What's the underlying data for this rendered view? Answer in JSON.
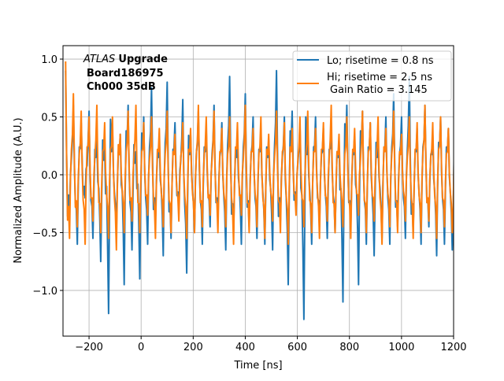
{
  "chart_data": {
    "type": "line",
    "title": "",
    "xlabel": "Time [ns]",
    "ylabel": "Normalized Amplitude (A.U.)",
    "xlim": [
      -300,
      1200
    ],
    "ylim": [
      -1.395,
      1.116
    ],
    "xticks": [
      -200,
      0,
      200,
      400,
      600,
      800,
      1000,
      1200
    ],
    "xtick_labels": [
      "−200",
      "0",
      "200",
      "400",
      "600",
      "800",
      "1000",
      "1200"
    ],
    "yticks": [
      -1.0,
      -0.5,
      0.0,
      0.5,
      1.0
    ],
    "ytick_labels": [
      "−1.0",
      "−0.5",
      "0.0",
      "0.5",
      "1.0"
    ],
    "grid": true,
    "legend_position": "top-right",
    "x_start": -290,
    "x_step": 15,
    "series": [
      {
        "name": "Lo; risetime = 0.8 ns",
        "color": "#1f77b4",
        "values": [
          0.9,
          -0.35,
          0.6,
          -0.6,
          0.45,
          -0.2,
          0.55,
          -0.55,
          0.3,
          -0.75,
          0.25,
          -1.2,
          0.4,
          -0.5,
          0.35,
          -0.95,
          0.6,
          -0.65,
          0.2,
          -0.9,
          0.5,
          -0.6,
          0.75,
          -0.4,
          0.3,
          -0.7,
          0.8,
          -0.55,
          0.45,
          -0.3,
          0.65,
          -0.85,
          0.35,
          -0.5,
          0.55,
          -0.6,
          0.4,
          -0.45,
          0.6,
          -0.4,
          0.45,
          -0.65,
          0.85,
          -0.5,
          0.3,
          -0.6,
          0.7,
          -0.45,
          0.5,
          -0.55,
          0.4,
          -0.6,
          0.3,
          -0.65,
          0.9,
          -0.4,
          0.5,
          -0.95,
          0.55,
          -0.3,
          0.45,
          -1.25,
          0.35,
          -0.6,
          0.5,
          -0.45,
          0.4,
          -0.55,
          0.45,
          -0.5,
          0.3,
          -1.1,
          0.6,
          -0.45,
          0.35,
          -0.95,
          0.55,
          -0.6,
          0.45,
          -0.7,
          0.3,
          -0.55,
          0.5,
          -0.6,
          0.7,
          -0.45,
          0.5,
          -0.55,
          0.85,
          -0.5,
          0.4,
          -0.6,
          0.6,
          -0.45,
          0.35,
          -0.7,
          0.5,
          -0.6,
          0.4,
          -0.65
        ]
      },
      {
        "name": "Hi; risetime = 2.5 ns",
        "name2": "Gain Ratio = 3.145",
        "color": "#ff7f0e",
        "values": [
          0.98,
          -0.55,
          0.7,
          -0.45,
          0.55,
          -0.6,
          0.5,
          -0.4,
          0.6,
          -0.5,
          0.45,
          -0.55,
          0.5,
          -0.65,
          0.35,
          -0.5,
          0.55,
          -0.4,
          0.6,
          -0.5,
          0.45,
          -0.35,
          0.5,
          -0.55,
          0.4,
          -0.45,
          0.55,
          -0.5,
          0.35,
          -0.4,
          0.45,
          -0.55,
          0.4,
          -0.5,
          0.6,
          -0.45,
          0.5,
          -0.35,
          0.55,
          -0.5,
          0.4,
          -0.45,
          0.5,
          -0.6,
          0.45,
          -0.35,
          0.6,
          -0.5,
          0.4,
          -0.45,
          0.5,
          -0.55,
          0.35,
          -0.4,
          0.55,
          -0.5,
          0.45,
          -0.6,
          0.4,
          -0.35,
          0.5,
          -0.45,
          0.55,
          -0.5,
          0.4,
          -0.55,
          0.45,
          -0.4,
          0.6,
          -0.5,
          0.35,
          -0.45,
          0.5,
          -0.55,
          0.4,
          -0.35,
          0.55,
          -0.5,
          0.45,
          -0.4,
          0.5,
          -0.6,
          0.4,
          -0.45,
          0.55,
          -0.5,
          0.35,
          -0.4,
          0.5,
          -0.55,
          0.45,
          -0.5,
          0.6,
          -0.4,
          0.45,
          -0.55,
          0.5,
          -0.45,
          0.4,
          -0.5
        ]
      }
    ],
    "annotation": {
      "italic": "ATLAS",
      "bold1": "Upgrade",
      "line2": "Board186975",
      "line3": "Ch000 35dB"
    }
  }
}
